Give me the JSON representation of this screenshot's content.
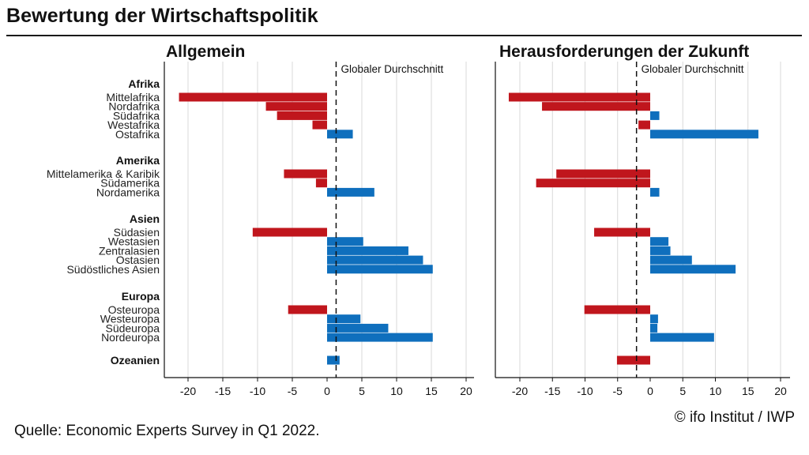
{
  "title": "Bewertung der Wirtschaftspolitik",
  "source": "Quelle: Economic Experts Survey in Q1 2022.",
  "copyright": "© ifo Institut / IWP",
  "colors": {
    "negative": "#c0161d",
    "positive": "#0f6fbd",
    "axis": "#111111",
    "grid": "#d9d9d9"
  },
  "chart_data": [
    {
      "type": "bar",
      "orientation": "horizontal",
      "title": "Allgemein",
      "reference_line": {
        "label": "Globaler Durchschnitt",
        "value": 1.3
      },
      "xlim": [
        -24,
        21
      ],
      "xticks": [
        -20,
        -15,
        -10,
        -5,
        0,
        5,
        10,
        15,
        20
      ],
      "grid": true,
      "groups": [
        {
          "name": "Afrika",
          "items": [
            {
              "label": "Mittelafrika",
              "value": -21.3
            },
            {
              "label": "Nordafrika",
              "value": -8.8
            },
            {
              "label": "Südafrika",
              "value": -7.2
            },
            {
              "label": "Westafrika",
              "value": -2.1
            },
            {
              "label": "Ostafrika",
              "value": 3.7
            }
          ]
        },
        {
          "name": "Amerika",
          "items": [
            {
              "label": "Mittelamerika & Karibik",
              "value": -6.2
            },
            {
              "label": "Südamerika",
              "value": -1.6
            },
            {
              "label": "Nordamerika",
              "value": 6.8
            }
          ]
        },
        {
          "name": "Asien",
          "items": [
            {
              "label": "Südasien",
              "value": -10.7
            },
            {
              "label": "Westasien",
              "value": 5.2
            },
            {
              "label": "Zentralasien",
              "value": 11.7
            },
            {
              "label": "Ostasien",
              "value": 13.8
            },
            {
              "label": "Südöstliches Asien",
              "value": 15.2
            }
          ]
        },
        {
          "name": "Europa",
          "items": [
            {
              "label": "Osteuropa",
              "value": -5.6
            },
            {
              "label": "Westeuropa",
              "value": 4.8
            },
            {
              "label": "Südeuropa",
              "value": 8.8
            },
            {
              "label": "Nordeuropa",
              "value": 15.2
            }
          ]
        },
        {
          "name": "Ozeanien",
          "items": [
            {
              "label": "",
              "value": 1.8
            }
          ]
        }
      ]
    },
    {
      "type": "bar",
      "orientation": "horizontal",
      "title": "Herausforderungen der Zukunft",
      "reference_line": {
        "label": "Globaler Durchschnitt",
        "value": -2.1
      },
      "xlim": [
        -24,
        21
      ],
      "xticks": [
        -20,
        -15,
        -10,
        -5,
        0,
        5,
        10,
        15,
        20
      ],
      "grid": true,
      "groups": [
        {
          "name": "Afrika",
          "items": [
            {
              "label": "Mittelafrika",
              "value": -21.7
            },
            {
              "label": "Nordafrika",
              "value": -16.6
            },
            {
              "label": "Südafrika",
              "value": 1.4
            },
            {
              "label": "Westafrika",
              "value": -1.8
            },
            {
              "label": "Ostafrika",
              "value": 16.6
            }
          ]
        },
        {
          "name": "Amerika",
          "items": [
            {
              "label": "Mittelamerika & Karibik",
              "value": -14.4
            },
            {
              "label": "Südamerika",
              "value": -17.5
            },
            {
              "label": "Nordamerika",
              "value": 1.4
            }
          ]
        },
        {
          "name": "Asien",
          "items": [
            {
              "label": "Südasien",
              "value": -8.6
            },
            {
              "label": "Westasien",
              "value": 2.8
            },
            {
              "label": "Zentralasien",
              "value": 3.1
            },
            {
              "label": "Ostasien",
              "value": 6.4
            },
            {
              "label": "Südöstliches Asien",
              "value": 13.1
            }
          ]
        },
        {
          "name": "Europa",
          "items": [
            {
              "label": "Osteuropa",
              "value": -10.1
            },
            {
              "label": "Westeuropa",
              "value": 1.2
            },
            {
              "label": "Südeuropa",
              "value": 1.1
            },
            {
              "label": "Nordeuropa",
              "value": 9.8
            }
          ]
        },
        {
          "name": "Ozeanien",
          "items": [
            {
              "label": "",
              "value": -5.1
            }
          ]
        }
      ]
    }
  ]
}
